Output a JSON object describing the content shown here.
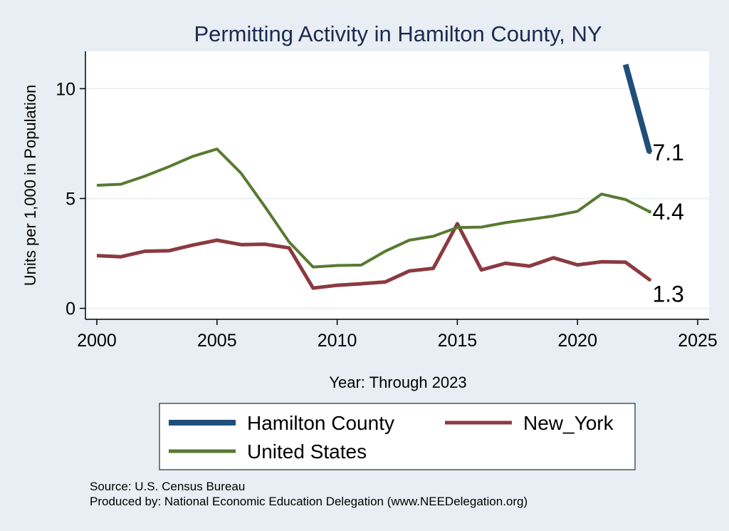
{
  "chart_data": {
    "type": "line",
    "title": "Permitting Activity in Hamilton County, NY",
    "xlabel": "Year: Through 2023",
    "ylabel": "Units per 1,000 in Population",
    "xlim": [
      2000,
      2025
    ],
    "ylim": [
      -0.5,
      11.7
    ],
    "xticks": [
      2000,
      2005,
      2010,
      2015,
      2020,
      2025
    ],
    "yticks": [
      0,
      5,
      10
    ],
    "grid": true,
    "legend_position": "bottom",
    "series": [
      {
        "name": "Hamilton County",
        "color": "#1f4e79",
        "x": [
          2022,
          2023
        ],
        "y": [
          11.1,
          7.1
        ],
        "end_label": "7.1"
      },
      {
        "name": "New_York",
        "color": "#8b3a41",
        "x": [
          2000,
          2001,
          2002,
          2003,
          2004,
          2005,
          2006,
          2007,
          2008,
          2009,
          2010,
          2011,
          2012,
          2013,
          2014,
          2015,
          2016,
          2017,
          2018,
          2019,
          2020,
          2021,
          2022,
          2023
        ],
        "y": [
          2.4,
          2.35,
          2.6,
          2.62,
          2.88,
          3.1,
          2.9,
          2.92,
          2.75,
          0.92,
          1.05,
          1.12,
          1.2,
          1.7,
          1.82,
          3.85,
          1.75,
          2.05,
          1.92,
          2.3,
          1.98,
          2.12,
          2.1,
          1.3
        ],
        "end_label": "1.3"
      },
      {
        "name": "United States",
        "color": "#587a31",
        "x": [
          2000,
          2001,
          2002,
          2003,
          2004,
          2005,
          2006,
          2007,
          2008,
          2009,
          2010,
          2011,
          2012,
          2013,
          2014,
          2015,
          2016,
          2017,
          2018,
          2019,
          2020,
          2021,
          2022,
          2023
        ],
        "y": [
          5.6,
          5.65,
          6.02,
          6.45,
          6.92,
          7.25,
          6.15,
          4.62,
          3.02,
          1.88,
          1.95,
          1.97,
          2.6,
          3.1,
          3.28,
          3.68,
          3.7,
          3.9,
          4.05,
          4.2,
          4.42,
          5.2,
          4.95,
          4.4
        ],
        "end_label": "4.4"
      }
    ],
    "legend": [
      {
        "label": "Hamilton County",
        "color": "#1f4e79"
      },
      {
        "label": "New_York",
        "color": "#8b3a41"
      },
      {
        "label": "United States",
        "color": "#587a31"
      }
    ]
  },
  "footer": {
    "source": "Source: U.S. Census Bureau",
    "produced_by": "Produced by: National Economic Education Delegation (www.NEEDelegation.org)"
  }
}
